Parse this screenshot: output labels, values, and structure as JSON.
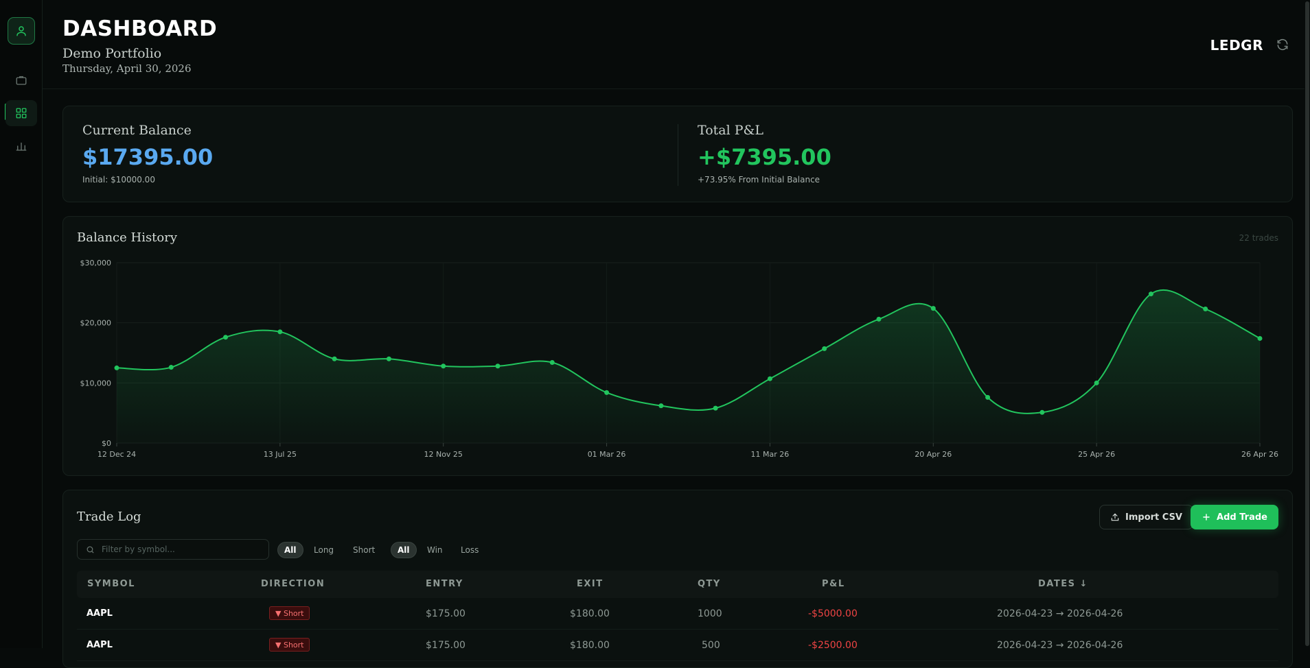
{
  "header": {
    "title": "DASHBOARD",
    "portfolio": "Demo Portfolio",
    "date": "Thursday, April 30, 2026",
    "brand": "LEDGR"
  },
  "sidebar": {
    "items": [
      {
        "name": "portfolio",
        "icon": "briefcase-icon"
      },
      {
        "name": "dashboard",
        "icon": "grid-icon",
        "active": true
      },
      {
        "name": "analytics",
        "icon": "bar-chart-icon"
      }
    ]
  },
  "summary": {
    "balance_label": "Current Balance",
    "balance_value": "$17395.00",
    "balance_note": "Initial: $10000.00",
    "pnl_label": "Total P&L",
    "pnl_value": "+$7395.00",
    "pnl_note": "+73.95% From Initial Balance",
    "colors": {
      "balance": "#5aa9f0",
      "pnl": "#22c55e"
    }
  },
  "history": {
    "title": "Balance History",
    "trade_count": "22 trades"
  },
  "chart_data": {
    "type": "area",
    "ylim": [
      0,
      30000
    ],
    "y_ticks": [
      "$0",
      "$10,000",
      "$20,000",
      "$30,000"
    ],
    "x_ticks": [
      "12 Dec 24",
      "13 Jul 25",
      "12 Nov 25",
      "01 Mar 26",
      "11 Mar 26",
      "20 Apr 26",
      "25 Apr 26",
      "26 Apr 26"
    ],
    "grid": true,
    "line_color": "#22c55e",
    "series": [
      {
        "values": [
          12500,
          12600,
          17600,
          18500,
          14000,
          14000,
          12800,
          12800,
          13400,
          8400,
          6200,
          5800,
          10700,
          15700,
          20600,
          22400,
          7600,
          5100,
          10000,
          24800,
          22300,
          17400
        ]
      }
    ]
  },
  "trade_log": {
    "title": "Trade Log",
    "import_label": "Import CSV",
    "add_label": "Add Trade",
    "search_placeholder": "Filter by symbol...",
    "direction_filters": [
      "All",
      "Long",
      "Short"
    ],
    "result_filters": [
      "All",
      "Win",
      "Loss"
    ],
    "columns": [
      "SYMBOL",
      "DIRECTION",
      "ENTRY",
      "EXIT",
      "QTY",
      "P&L",
      "DATES ↓"
    ],
    "rows": [
      {
        "symbol": "AAPL",
        "direction": "▼ Short",
        "entry": "$175.00",
        "exit": "$180.00",
        "qty": "1000",
        "pnl": "-$5000.00",
        "dates": "2026-04-23 → 2026-04-26"
      },
      {
        "symbol": "AAPL",
        "direction": "▼ Short",
        "entry": "$175.00",
        "exit": "$180.00",
        "qty": "500",
        "pnl": "-$2500.00",
        "dates": "2026-04-23 → 2026-04-26"
      }
    ]
  }
}
